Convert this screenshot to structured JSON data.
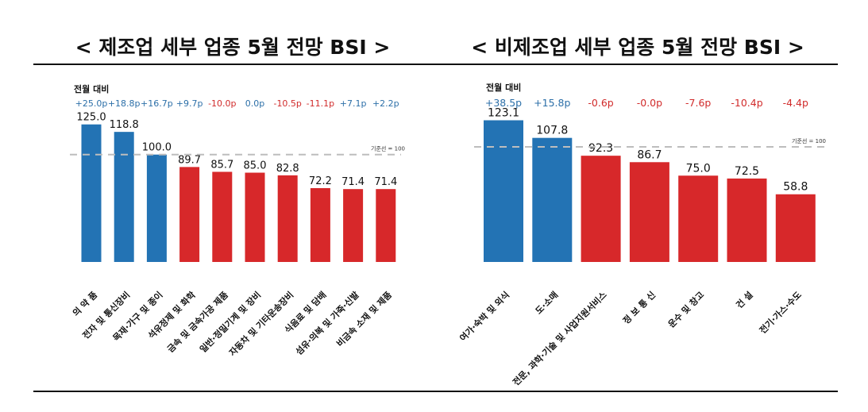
{
  "chart_data": [
    {
      "type": "bar",
      "title": "< 제조업 세부 업종 5월 전망 BSI >",
      "change_label": "전월 대비",
      "reference_label": "기준선 = 100",
      "reference_value": 100,
      "ylim": [
        11,
        140
      ],
      "categories": [
        "의 약 품",
        "전자 및 통신장비",
        "목재·가구 및 종이",
        "석유정제 및 화학",
        "금속 및 금속가공 제품",
        "일반·정밀기계 및 장비",
        "자동차 및 기타운송장비",
        "식음료 및 담배",
        "섬유·의복 및 가죽·신발",
        "비금속 소재 및 제품"
      ],
      "values": [
        125.0,
        118.8,
        100.0,
        89.7,
        85.7,
        85.0,
        82.8,
        72.2,
        71.4,
        71.4
      ],
      "value_labels": [
        "125.0",
        "118.8",
        "100.0",
        "89.7",
        "85.7",
        "85.0",
        "82.8",
        "72.2",
        "71.4",
        "71.4"
      ],
      "changes": [
        "+25.0p",
        "+18.8p",
        "+16.7p",
        "+9.7p",
        "-10.0p",
        "0.0p",
        "-10.5p",
        "-11.1p",
        "+7.1p",
        "+2.2p"
      ],
      "bar_colors": [
        "#2373b4",
        "#2373b4",
        "#2373b4",
        "#d7282a",
        "#d7282a",
        "#d7282a",
        "#d7282a",
        "#d7282a",
        "#d7282a",
        "#d7282a"
      ],
      "change_colors": [
        "#2c6fa8",
        "#2c6fa8",
        "#2c6fa8",
        "#2c6fa8",
        "#d12b2b",
        "#2c6fa8",
        "#d12b2b",
        "#d12b2b",
        "#2c6fa8",
        "#2c6fa8"
      ]
    },
    {
      "type": "bar",
      "title": "< 비제조업 세부 업종 5월 전망 BSI >",
      "change_label": "전월 대비",
      "reference_label": "기준선 = 100",
      "reference_value": 100,
      "ylim": [
        0,
        130
      ],
      "categories": [
        "여가·숙박 및 외식",
        "도·소매",
        "전문, 과학·기술 및 사업지원서비스",
        "정 보 통 신",
        "운수 및 창고",
        "건 설",
        "전기·가스·수도"
      ],
      "values": [
        123.1,
        107.8,
        92.3,
        86.7,
        75.0,
        72.5,
        58.8
      ],
      "value_labels": [
        "123.1",
        "107.8",
        "92.3",
        "86.7",
        "75.0",
        "72.5",
        "58.8"
      ],
      "changes": [
        "+38.5p",
        "+15.8p",
        "-0.6p",
        "-0.0p",
        "-7.6p",
        "-10.4p",
        "-4.4p"
      ],
      "bar_colors": [
        "#2373b4",
        "#2373b4",
        "#d7282a",
        "#d7282a",
        "#d7282a",
        "#d7282a",
        "#d7282a"
      ],
      "change_colors": [
        "#2c6fa8",
        "#2c6fa8",
        "#d12b2b",
        "#d12b2b",
        "#d12b2b",
        "#d12b2b",
        "#d12b2b"
      ]
    }
  ]
}
